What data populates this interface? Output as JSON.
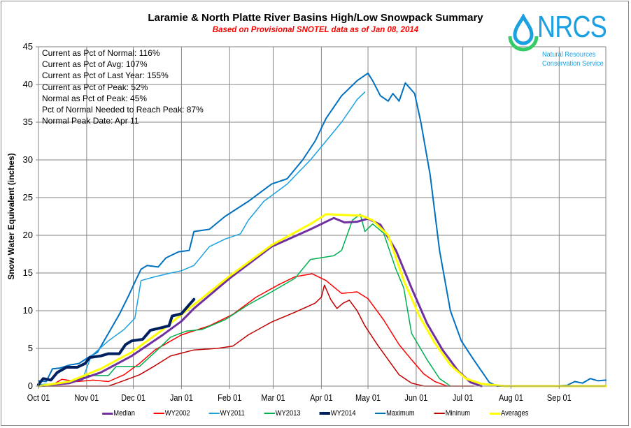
{
  "chart_data": {
    "type": "line",
    "title": "Laramie & North Platte River Basins High/Low Snowpack Summary",
    "subtitle": "Based on Provisional SNOTEL data as of Jan 08, 2014",
    "xlabel": "",
    "ylabel": "Snow Water Equivalent (inches)",
    "ylim": [
      0,
      45
    ],
    "yticks": [
      0,
      5,
      10,
      15,
      20,
      25,
      30,
      35,
      40,
      45
    ],
    "x_unit": "days since Oct 01",
    "xlim": [
      0,
      365
    ],
    "xticks": [
      {
        "label": "Oct 01",
        "day": 0
      },
      {
        "label": "Nov 01",
        "day": 31
      },
      {
        "label": "Dec 01",
        "day": 61
      },
      {
        "label": "Jan 01",
        "day": 92
      },
      {
        "label": "Feb 01",
        "day": 123
      },
      {
        "label": "Mar 01",
        "day": 151
      },
      {
        "label": "Apr 01",
        "day": 182
      },
      {
        "label": "May 01",
        "day": 212
      },
      {
        "label": "Jun 01",
        "day": 243
      },
      {
        "label": "Jul 01",
        "day": 273
      },
      {
        "label": "Aug 01",
        "day": 304
      },
      {
        "label": "Sep 01",
        "day": 335
      }
    ],
    "grid": true,
    "legend_position": "bottom",
    "series": [
      {
        "name": "Median",
        "color": "#7030a0",
        "width": 3,
        "points": [
          [
            0,
            0
          ],
          [
            20,
            0.4
          ],
          [
            40,
            1.8
          ],
          [
            60,
            4
          ],
          [
            80,
            6.8
          ],
          [
            92,
            8.6
          ],
          [
            100,
            10.3
          ],
          [
            123,
            14.3
          ],
          [
            150,
            18.5
          ],
          [
            175,
            20.8
          ],
          [
            190,
            22.3
          ],
          [
            197,
            21.7
          ],
          [
            205,
            21.8
          ],
          [
            212,
            22.2
          ],
          [
            220,
            21.4
          ],
          [
            230,
            18
          ],
          [
            240,
            13
          ],
          [
            250,
            8.3
          ],
          [
            260,
            4.8
          ],
          [
            270,
            2
          ],
          [
            278,
            0.5
          ],
          [
            285,
            0
          ]
        ]
      },
      {
        "name": "WY2002",
        "color": "#ff0000",
        "width": 1.5,
        "points": [
          [
            0,
            0
          ],
          [
            10,
            0.3
          ],
          [
            15,
            0.9
          ],
          [
            25,
            0.6
          ],
          [
            35,
            0.8
          ],
          [
            45,
            0.6
          ],
          [
            55,
            1.5
          ],
          [
            65,
            3
          ],
          [
            75,
            4.8
          ],
          [
            92,
            6.8
          ],
          [
            110,
            8
          ],
          [
            125,
            9.5
          ],
          [
            140,
            11.8
          ],
          [
            155,
            13.5
          ],
          [
            165,
            14.5
          ],
          [
            176,
            14.9
          ],
          [
            185,
            14
          ],
          [
            195,
            12.3
          ],
          [
            205,
            12.5
          ],
          [
            212,
            11.6
          ],
          [
            222,
            8.8
          ],
          [
            232,
            5.5
          ],
          [
            240,
            3.5
          ],
          [
            248,
            1.6
          ],
          [
            255,
            0.6
          ],
          [
            263,
            0
          ]
        ]
      },
      {
        "name": "WY2011",
        "color": "#1ba1e2",
        "width": 1.5,
        "points": [
          [
            0,
            0.2
          ],
          [
            10,
            0.3
          ],
          [
            20,
            0.5
          ],
          [
            28,
            0.7
          ],
          [
            34,
            4
          ],
          [
            45,
            6
          ],
          [
            55,
            7.5
          ],
          [
            62,
            9
          ],
          [
            66,
            14
          ],
          [
            75,
            14.5
          ],
          [
            85,
            15
          ],
          [
            92,
            15.3
          ],
          [
            100,
            16
          ],
          [
            110,
            18.5
          ],
          [
            120,
            19.5
          ],
          [
            130,
            20.2
          ],
          [
            135,
            22
          ],
          [
            145,
            24.5
          ],
          [
            160,
            26.8
          ],
          [
            175,
            30
          ],
          [
            185,
            32.5
          ],
          [
            195,
            35
          ],
          [
            205,
            38
          ],
          [
            210,
            39
          ]
        ]
      },
      {
        "name": "WY2013",
        "color": "#00b050",
        "width": 1.5,
        "points": [
          [
            0,
            0
          ],
          [
            12,
            0.3
          ],
          [
            25,
            0.7
          ],
          [
            30,
            1.4
          ],
          [
            45,
            1.4
          ],
          [
            50,
            2.6
          ],
          [
            65,
            2.6
          ],
          [
            75,
            4.5
          ],
          [
            85,
            6.5
          ],
          [
            95,
            7.3
          ],
          [
            105,
            7.5
          ],
          [
            120,
            8.8
          ],
          [
            135,
            10.8
          ],
          [
            150,
            12.5
          ],
          [
            165,
            14.3
          ],
          [
            175,
            16.8
          ],
          [
            190,
            17.3
          ],
          [
            195,
            18
          ],
          [
            202,
            22
          ],
          [
            207,
            22.8
          ],
          [
            210,
            20.5
          ],
          [
            215,
            21.5
          ],
          [
            222,
            20.3
          ],
          [
            230,
            15.5
          ],
          [
            235,
            13
          ],
          [
            240,
            7
          ],
          [
            250,
            3.5
          ],
          [
            258,
            1
          ],
          [
            265,
            0
          ]
        ]
      },
      {
        "name": "WY2014",
        "color": "#002060",
        "width": 4,
        "points": [
          [
            0,
            0.2
          ],
          [
            3,
            1
          ],
          [
            8,
            0.8
          ],
          [
            12,
            1.8
          ],
          [
            18,
            2.5
          ],
          [
            25,
            2.5
          ],
          [
            30,
            3
          ],
          [
            33,
            3.8
          ],
          [
            40,
            4
          ],
          [
            45,
            4.3
          ],
          [
            52,
            4.3
          ],
          [
            56,
            5.5
          ],
          [
            60,
            6
          ],
          [
            67,
            6.2
          ],
          [
            72,
            7.4
          ],
          [
            80,
            7.8
          ],
          [
            84,
            8
          ],
          [
            86,
            9.3
          ],
          [
            92,
            9.6
          ],
          [
            97,
            10.8
          ],
          [
            100,
            11.5
          ]
        ]
      },
      {
        "name": "Maximum",
        "color": "#0070c0",
        "width": 2,
        "points": [
          [
            0,
            0.7
          ],
          [
            5,
            0.6
          ],
          [
            9,
            2.3
          ],
          [
            14,
            2.4
          ],
          [
            20,
            2.8
          ],
          [
            26,
            3
          ],
          [
            32,
            3.8
          ],
          [
            38,
            4.5
          ],
          [
            45,
            7
          ],
          [
            52,
            9.5
          ],
          [
            58,
            12
          ],
          [
            62,
            13.8
          ],
          [
            66,
            15.5
          ],
          [
            70,
            16
          ],
          [
            77,
            15.8
          ],
          [
            82,
            17
          ],
          [
            90,
            17.8
          ],
          [
            97,
            18
          ],
          [
            100,
            20.5
          ],
          [
            110,
            20.8
          ],
          [
            120,
            22.5
          ],
          [
            135,
            24.5
          ],
          [
            150,
            26.8
          ],
          [
            160,
            27.5
          ],
          [
            170,
            30
          ],
          [
            178,
            32.5
          ],
          [
            185,
            35.5
          ],
          [
            195,
            38.5
          ],
          [
            205,
            40.5
          ],
          [
            212,
            41.5
          ],
          [
            215,
            40.5
          ],
          [
            220,
            38.5
          ],
          [
            225,
            37.8
          ],
          [
            228,
            38.8
          ],
          [
            232,
            37.8
          ],
          [
            236,
            40.2
          ],
          [
            242,
            38.8
          ],
          [
            246,
            35
          ],
          [
            252,
            28
          ],
          [
            258,
            18
          ],
          [
            265,
            10
          ],
          [
            272,
            6
          ],
          [
            280,
            3.5
          ],
          [
            290,
            0.5
          ],
          [
            295,
            0
          ],
          [
            330,
            0
          ],
          [
            340,
            0.1
          ],
          [
            345,
            0.6
          ],
          [
            350,
            0.4
          ],
          [
            355,
            1
          ],
          [
            360,
            0.7
          ],
          [
            365,
            0.8
          ]
        ]
      },
      {
        "name": "Mininum",
        "color": "#c00000",
        "width": 1.5,
        "points": [
          [
            0,
            0
          ],
          [
            20,
            0
          ],
          [
            45,
            0
          ],
          [
            52,
            0.5
          ],
          [
            65,
            1.5
          ],
          [
            75,
            2.7
          ],
          [
            85,
            4
          ],
          [
            100,
            4.8
          ],
          [
            115,
            5
          ],
          [
            125,
            5.3
          ],
          [
            135,
            6.8
          ],
          [
            150,
            8.5
          ],
          [
            165,
            9.8
          ],
          [
            178,
            11
          ],
          [
            182,
            11.8
          ],
          [
            184,
            13.4
          ],
          [
            188,
            11.5
          ],
          [
            192,
            10.3
          ],
          [
            196,
            11
          ],
          [
            200,
            11.4
          ],
          [
            205,
            10
          ],
          [
            210,
            8
          ],
          [
            218,
            5.5
          ],
          [
            225,
            3.5
          ],
          [
            232,
            1.5
          ],
          [
            240,
            0.4
          ],
          [
            248,
            0
          ],
          [
            280,
            0
          ]
        ]
      },
      {
        "name": "Averages",
        "color": "#ffff00",
        "width": 3,
        "points": [
          [
            0,
            0
          ],
          [
            20,
            0.6
          ],
          [
            40,
            2.3
          ],
          [
            60,
            4.5
          ],
          [
            80,
            7.5
          ],
          [
            92,
            9.5
          ],
          [
            100,
            10.8
          ],
          [
            123,
            14.6
          ],
          [
            150,
            18.7
          ],
          [
            175,
            21.5
          ],
          [
            185,
            22.8
          ],
          [
            195,
            22.7
          ],
          [
            208,
            22.6
          ],
          [
            215,
            22
          ],
          [
            225,
            20
          ],
          [
            235,
            14
          ],
          [
            245,
            9.3
          ],
          [
            255,
            5.7
          ],
          [
            265,
            2.8
          ],
          [
            275,
            1
          ],
          [
            285,
            0.3
          ],
          [
            300,
            0
          ],
          [
            365,
            0
          ]
        ]
      }
    ]
  },
  "stats": [
    "Current as Pct of Normal: 116%",
    "Current as Pct of Avg: 107%",
    "Current as Pct of Last Year: 155%",
    "Current as Pct of Peak: 52%",
    "Normal as Pct of Peak: 45%",
    "Pct of Normal Needed to Reach Peak: 87%",
    "Normal Peak Date: Apr 11"
  ],
  "logo": {
    "acronym": "NRCS",
    "line1": "Natural Resources",
    "line2": "Conservation Service",
    "drop_color": "#1ba1e2",
    "arc_color": "#33cc66"
  }
}
